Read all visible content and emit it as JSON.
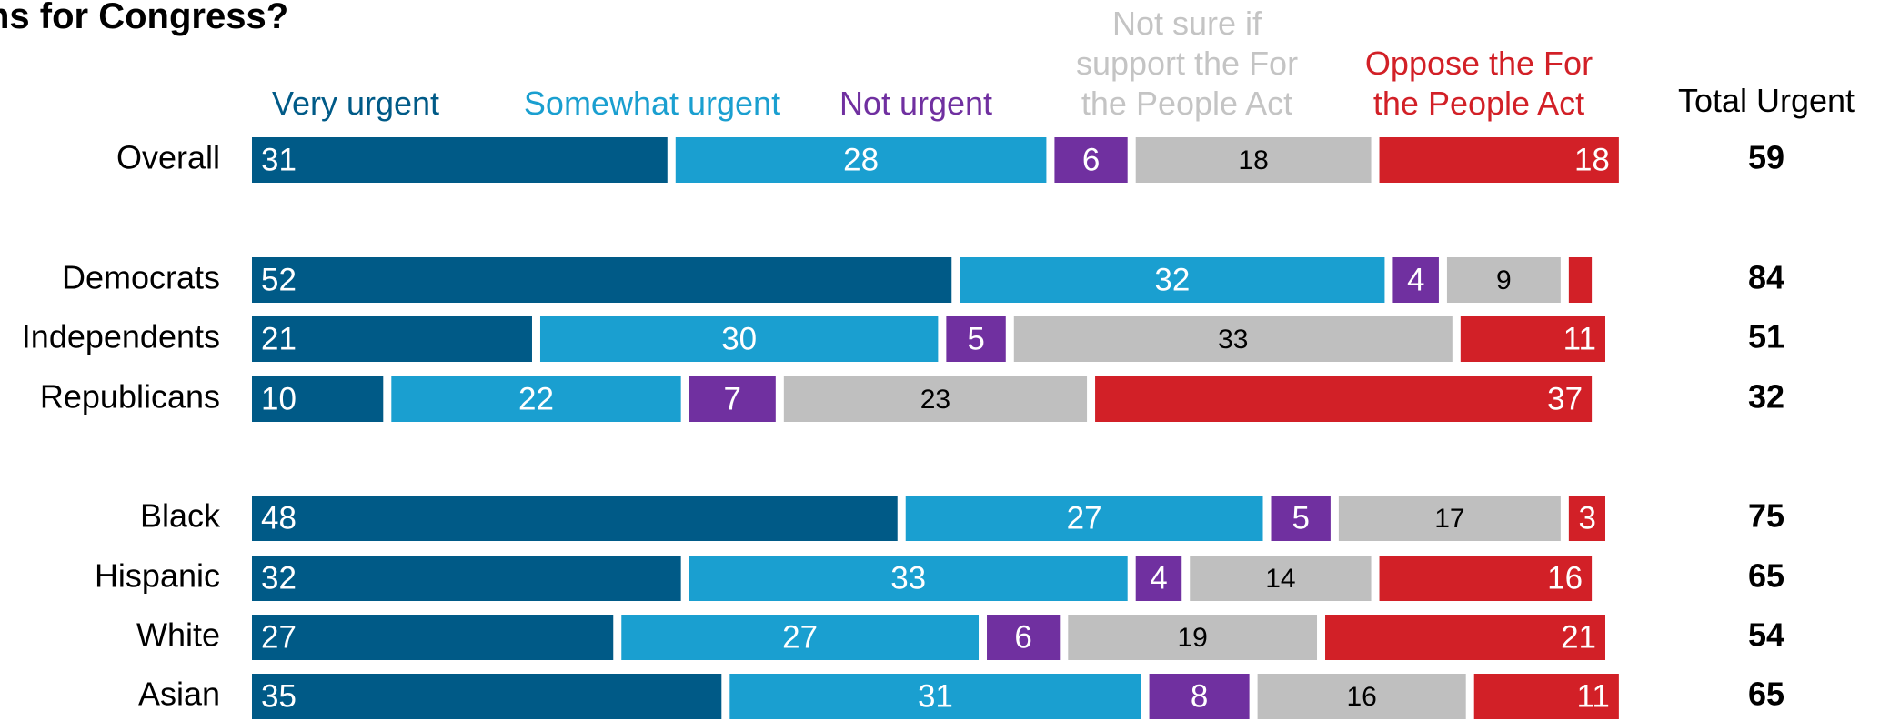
{
  "chart_data": {
    "type": "bar",
    "orientation": "horizontal",
    "stacked": true,
    "title": "ns for Congress?",
    "categories": [
      "Overall",
      "Democrats",
      "Independents",
      "Republicans",
      "Black",
      "Hispanic",
      "White",
      "Asian"
    ],
    "xlim": [
      0,
      100
    ],
    "series": [
      {
        "name": "Very urgent",
        "color": "#005a87",
        "values": [
          31,
          52,
          21,
          10,
          48,
          32,
          27,
          35
        ]
      },
      {
        "name": "Somewhat urgent",
        "color": "#1a9fd0",
        "values": [
          28,
          32,
          30,
          22,
          27,
          33,
          27,
          31
        ]
      },
      {
        "name": "Not urgent",
        "color": "#7030a0",
        "values": [
          6,
          4,
          5,
          7,
          5,
          4,
          6,
          8
        ]
      },
      {
        "name": "Not sure if support the For the People Act",
        "color": "#bfbfbf",
        "values": [
          18,
          9,
          33,
          23,
          17,
          14,
          19,
          16
        ]
      },
      {
        "name": "Oppose the For the People Act",
        "color": "#d22027",
        "values": [
          18,
          2,
          11,
          37,
          3,
          16,
          21,
          11
        ],
        "value_labels": [
          "18",
          null,
          "11",
          "37",
          "3",
          "16",
          "21",
          "11"
        ]
      }
    ],
    "total_urgent": {
      "label": "Total Urgent",
      "values": [
        59,
        84,
        51,
        32,
        75,
        65,
        54,
        65
      ]
    }
  }
}
